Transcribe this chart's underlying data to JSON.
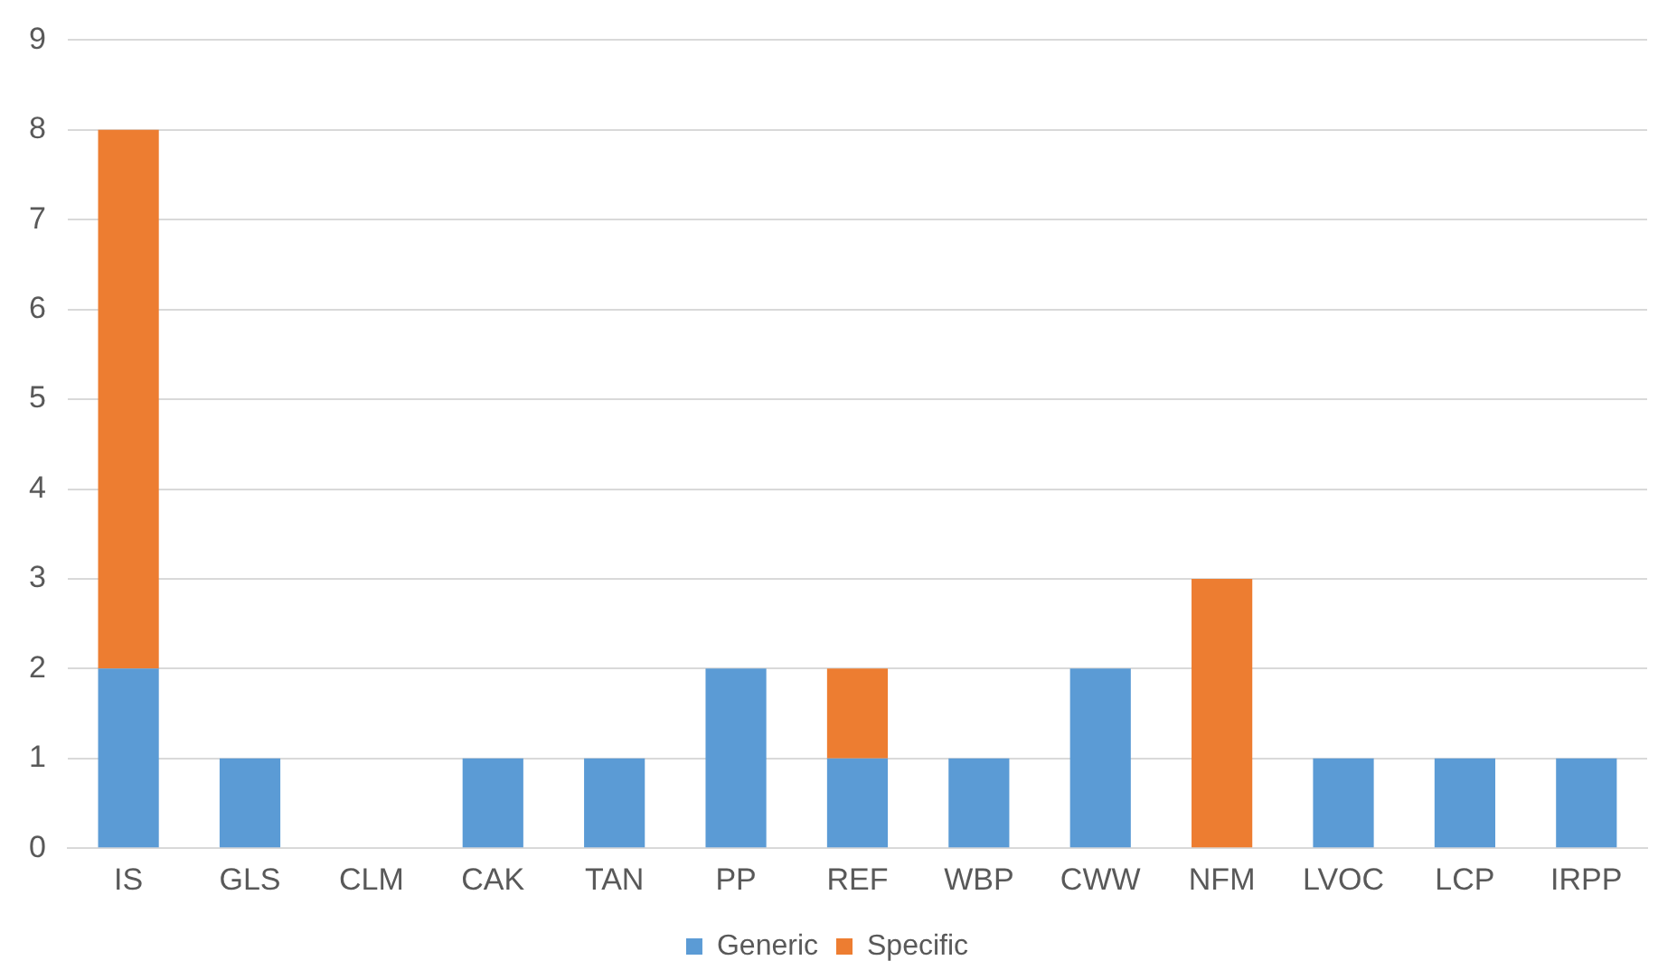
{
  "chart_data": {
    "type": "bar",
    "stacked": true,
    "categories": [
      "IS",
      "GLS",
      "CLM",
      "CAK",
      "TAN",
      "PP",
      "REF",
      "WBP",
      "CWW",
      "NFM",
      "LVOC",
      "LCP",
      "IRPP"
    ],
    "series": [
      {
        "name": "Generic",
        "color": "#5b9bd5",
        "values": [
          2,
          1,
          0,
          1,
          1,
          2,
          1,
          1,
          2,
          0,
          1,
          1,
          1
        ]
      },
      {
        "name": "Specific",
        "color": "#ed7d31",
        "values": [
          6,
          0,
          0,
          0,
          0,
          0,
          1,
          0,
          0,
          3,
          0,
          0,
          0
        ]
      }
    ],
    "ylim": [
      0,
      9
    ],
    "yticks": [
      0,
      1,
      2,
      3,
      4,
      5,
      6,
      7,
      8,
      9
    ],
    "grid": "y",
    "legend": "bottom"
  }
}
